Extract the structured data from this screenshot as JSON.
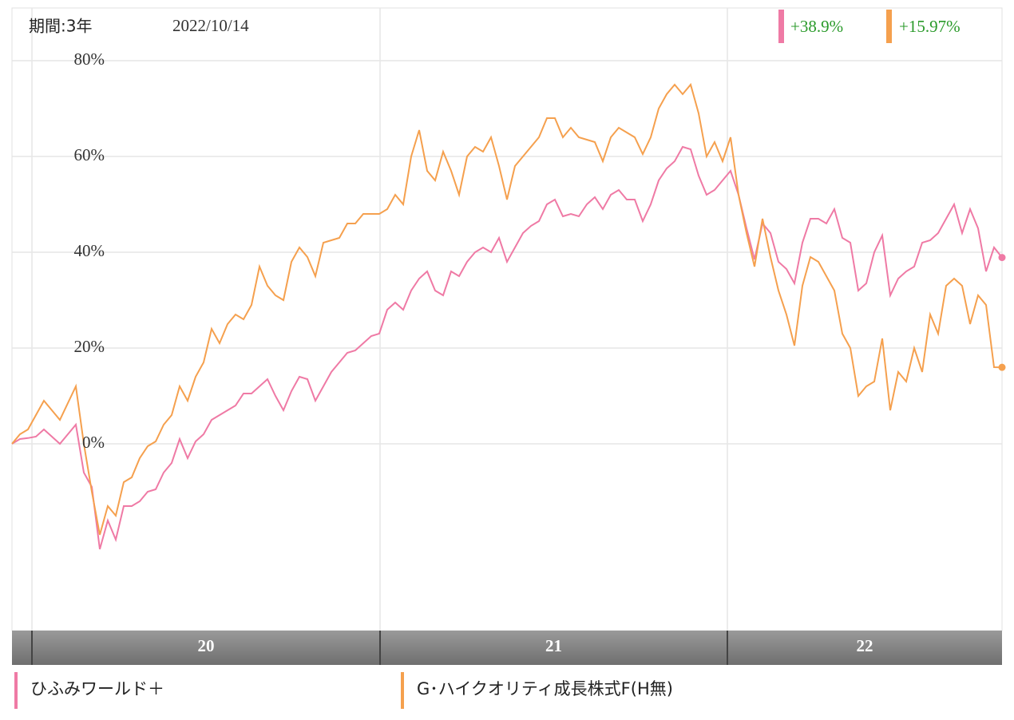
{
  "chart_data": {
    "type": "line",
    "period_label": "期間:3年",
    "date_label": "2022/10/14",
    "ylim": [
      -39,
      91
    ],
    "yticks": [
      {
        "value": 0,
        "label": "0%"
      },
      {
        "value": 20,
        "label": "20%"
      },
      {
        "value": 40,
        "label": "40%"
      },
      {
        "value": 60,
        "label": "60%"
      },
      {
        "value": 80,
        "label": "80%"
      }
    ],
    "xlim": [
      0,
      124
    ],
    "xticks": [
      {
        "value": 2.5,
        "label": "20"
      },
      {
        "value": 46.1,
        "label": "21"
      },
      {
        "value": 89.6,
        "label": "22"
      }
    ],
    "grid": true,
    "series": [
      {
        "name": "ひふみワールド＋",
        "color": "#ef7aa5",
        "end_label": "+38.9%",
        "values": [
          0,
          1,
          1.2,
          1.5,
          3,
          1.5,
          0,
          2,
          4,
          -6,
          -9,
          -22,
          -16,
          -20,
          -13,
          -13,
          -12,
          -10,
          -9.5,
          -6,
          -4,
          1,
          -3,
          0.5,
          2,
          5,
          6,
          7,
          8,
          10.5,
          10.5,
          12,
          13.5,
          10,
          7,
          11,
          14,
          13.5,
          9,
          12,
          15,
          17,
          19,
          19.5,
          21,
          22.5,
          23,
          28,
          29.5,
          28,
          32,
          34.5,
          36,
          32,
          31,
          36,
          35,
          38,
          40,
          41,
          40,
          43,
          38,
          41,
          44,
          45.5,
          46.5,
          50,
          51,
          47.5,
          48,
          47.5,
          50,
          51.5,
          49,
          52,
          53,
          51,
          51,
          46.5,
          50,
          55,
          57.5,
          59,
          62,
          61.5,
          56,
          52,
          53,
          55,
          57,
          52,
          45,
          38.5,
          46,
          44,
          38,
          36.5,
          33.5,
          42,
          47,
          47,
          46,
          49,
          43,
          42,
          32,
          33.5,
          40,
          43.5,
          31,
          34.5,
          36,
          37,
          42,
          42.5,
          44,
          47,
          50,
          44,
          49,
          45,
          36,
          41,
          38.9
        ]
      },
      {
        "name": "G･ハイクオリティ成長株式F(H無)",
        "color": "#f5a04e",
        "end_label": "+15.97%",
        "values": [
          0,
          2,
          3,
          6,
          9,
          7,
          5,
          8.5,
          12,
          0,
          -10,
          -19,
          -13,
          -15,
          -8,
          -7,
          -3,
          -0.5,
          0.5,
          4,
          6,
          12,
          9,
          14,
          17,
          24,
          21,
          25,
          27,
          26,
          29,
          37,
          33,
          31,
          30,
          38,
          41,
          39,
          35,
          42,
          42.5,
          43,
          46,
          46,
          48,
          48,
          48,
          49,
          52,
          50,
          60,
          65.5,
          57,
          55,
          61,
          57,
          52,
          60,
          62,
          61,
          64,
          58,
          51,
          58,
          60,
          62,
          64,
          68,
          68,
          64,
          66,
          64,
          63.5,
          63,
          59,
          64,
          66,
          65,
          64,
          60.5,
          64,
          70,
          73,
          75,
          73,
          75,
          69,
          60,
          63,
          59,
          64,
          52,
          44,
          37,
          47,
          39,
          32,
          27,
          20.5,
          33,
          39,
          38,
          35,
          32,
          23,
          20,
          10,
          12,
          13,
          22,
          7,
          15,
          13,
          20,
          15,
          27,
          23,
          33,
          34.5,
          33,
          25,
          31,
          29,
          16,
          15.97
        ]
      }
    ]
  }
}
